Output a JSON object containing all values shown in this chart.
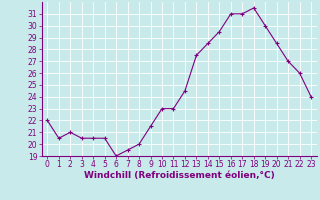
{
  "x": [
    0,
    1,
    2,
    3,
    4,
    5,
    6,
    7,
    8,
    9,
    10,
    11,
    12,
    13,
    14,
    15,
    16,
    17,
    18,
    19,
    20,
    21,
    22,
    23
  ],
  "y": [
    22,
    20.5,
    21,
    20.5,
    20.5,
    20.5,
    19,
    19.5,
    20,
    21.5,
    23,
    23,
    24.5,
    27.5,
    28.5,
    29.5,
    31,
    31,
    31.5,
    30,
    28.5,
    27,
    26,
    24
  ],
  "line_color": "#800080",
  "marker": "+",
  "marker_color": "#800080",
  "bg_color": "#c8eaea",
  "grid_color": "#ffffff",
  "xlabel": "Windchill (Refroidissement éolien,°C)",
  "ylim": [
    19,
    32
  ],
  "xlim": [
    -0.5,
    23.5
  ],
  "yticks": [
    19,
    20,
    21,
    22,
    23,
    24,
    25,
    26,
    27,
    28,
    29,
    30,
    31
  ],
  "xticks": [
    0,
    1,
    2,
    3,
    4,
    5,
    6,
    7,
    8,
    9,
    10,
    11,
    12,
    13,
    14,
    15,
    16,
    17,
    18,
    19,
    20,
    21,
    22,
    23
  ],
  "tick_fontsize": 5.5,
  "xlabel_fontsize": 6.5,
  "axis_label_color": "#800080",
  "tick_color": "#800080",
  "spine_color": "#800080"
}
